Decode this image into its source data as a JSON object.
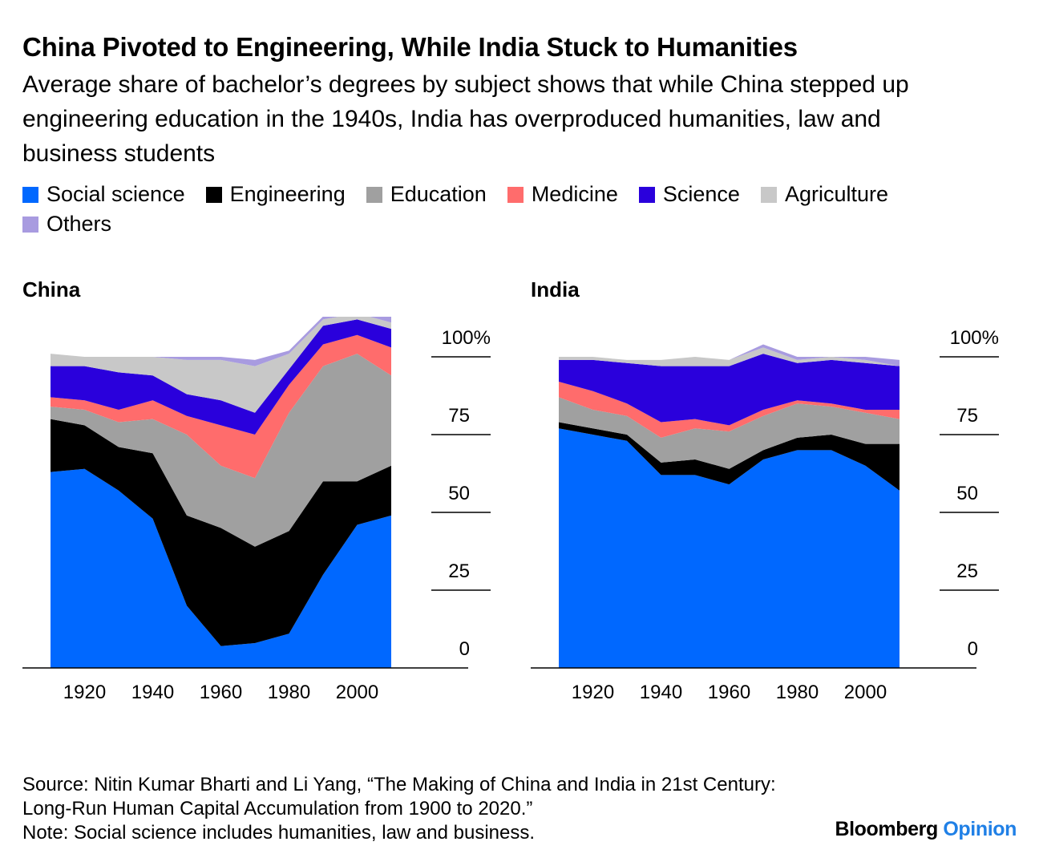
{
  "title": "China Pivoted to Engineering, While India Stuck to Humanities",
  "subtitle": "Average share of bachelor’s degrees by subject shows that while China stepped up engineering education in the 1940s, India has overproduced humanities, law and business students",
  "legend": [
    {
      "label": "Social science",
      "color": "#0068ff"
    },
    {
      "label": "Engineering",
      "color": "#000000"
    },
    {
      "label": "Education",
      "color": "#a0a0a0"
    },
    {
      "label": "Medicine",
      "color": "#ff6c6c"
    },
    {
      "label": "Science",
      "color": "#2a00dc"
    },
    {
      "label": "Agriculture",
      "color": "#c8c8c8"
    },
    {
      "label": "Others",
      "color": "#a89be0"
    }
  ],
  "chart_data": [
    {
      "type": "area",
      "title": "China",
      "x": [
        1910,
        1920,
        1930,
        1940,
        1950,
        1960,
        1970,
        1980,
        1990,
        2000,
        2010
      ],
      "ylim": [
        0,
        100
      ],
      "y_ticks": [
        "0",
        "25",
        "50",
        "75",
        "100%"
      ],
      "x_ticks": [
        "1920",
        "1940",
        "1960",
        "1980",
        "2000"
      ],
      "series": [
        {
          "name": "Social science",
          "values": [
            63,
            64,
            57,
            48,
            20,
            7,
            8,
            11,
            30,
            46,
            49
          ]
        },
        {
          "name": "Engineering",
          "values": [
            17,
            14,
            14,
            21,
            29,
            38,
            31,
            33,
            30,
            14,
            16
          ]
        },
        {
          "name": "Education",
          "values": [
            4,
            5,
            8,
            11,
            26,
            20,
            22,
            38,
            37,
            41,
            29
          ]
        },
        {
          "name": "Medicine",
          "values": [
            3,
            3,
            4,
            6,
            6,
            13,
            14,
            9,
            7,
            6,
            9
          ]
        },
        {
          "name": "Science",
          "values": [
            10,
            11,
            12,
            8,
            7,
            8,
            7,
            5,
            6,
            5,
            6
          ]
        },
        {
          "name": "Agriculture",
          "values": [
            4,
            3,
            5,
            6,
            11,
            13,
            15,
            5,
            2,
            2,
            2
          ]
        },
        {
          "name": "Others",
          "values": [
            0,
            0,
            0,
            0,
            1,
            1,
            2,
            1,
            1,
            6,
            6
          ]
        }
      ]
    },
    {
      "type": "area",
      "title": "India",
      "x": [
        1910,
        1920,
        1930,
        1940,
        1950,
        1960,
        1970,
        1980,
        1990,
        2000,
        2010
      ],
      "ylim": [
        0,
        100
      ],
      "y_ticks": [
        "0",
        "25",
        "50",
        "75",
        "100%"
      ],
      "x_ticks": [
        "1920",
        "1940",
        "1960",
        "1980",
        "2000"
      ],
      "series": [
        {
          "name": "Social science",
          "values": [
            77,
            75,
            73,
            62,
            62,
            59,
            67,
            70,
            70,
            65,
            57
          ]
        },
        {
          "name": "Engineering",
          "values": [
            2,
            2,
            2,
            4,
            5,
            5,
            3,
            4,
            5,
            7,
            15
          ]
        },
        {
          "name": "Education",
          "values": [
            8,
            6,
            6,
            8,
            10,
            12,
            11,
            11,
            9,
            10,
            8
          ]
        },
        {
          "name": "Medicine",
          "values": [
            5,
            6,
            4,
            5,
            3,
            2,
            2,
            1,
            1,
            1,
            3
          ]
        },
        {
          "name": "Science",
          "values": [
            7,
            10,
            13,
            18,
            17,
            19,
            18,
            12,
            14,
            15,
            14
          ]
        },
        {
          "name": "Agriculture",
          "values": [
            1,
            1,
            1,
            2,
            3,
            2,
            2,
            1,
            1,
            1,
            0
          ]
        },
        {
          "name": "Others",
          "values": [
            0,
            0,
            0,
            0,
            0,
            0,
            1,
            1,
            0,
            1,
            2
          ]
        }
      ]
    }
  ],
  "footer": {
    "source": "Source: Nitin Kumar Bharti and Li Yang, “The Making of China and India in 21st Century: Long-Run Human Capital Accumulation from 1900 to 2020.”",
    "note": "Note: Social science includes humanities, law and business."
  },
  "brand": {
    "name": "Bloomberg",
    "section": "Opinion"
  }
}
